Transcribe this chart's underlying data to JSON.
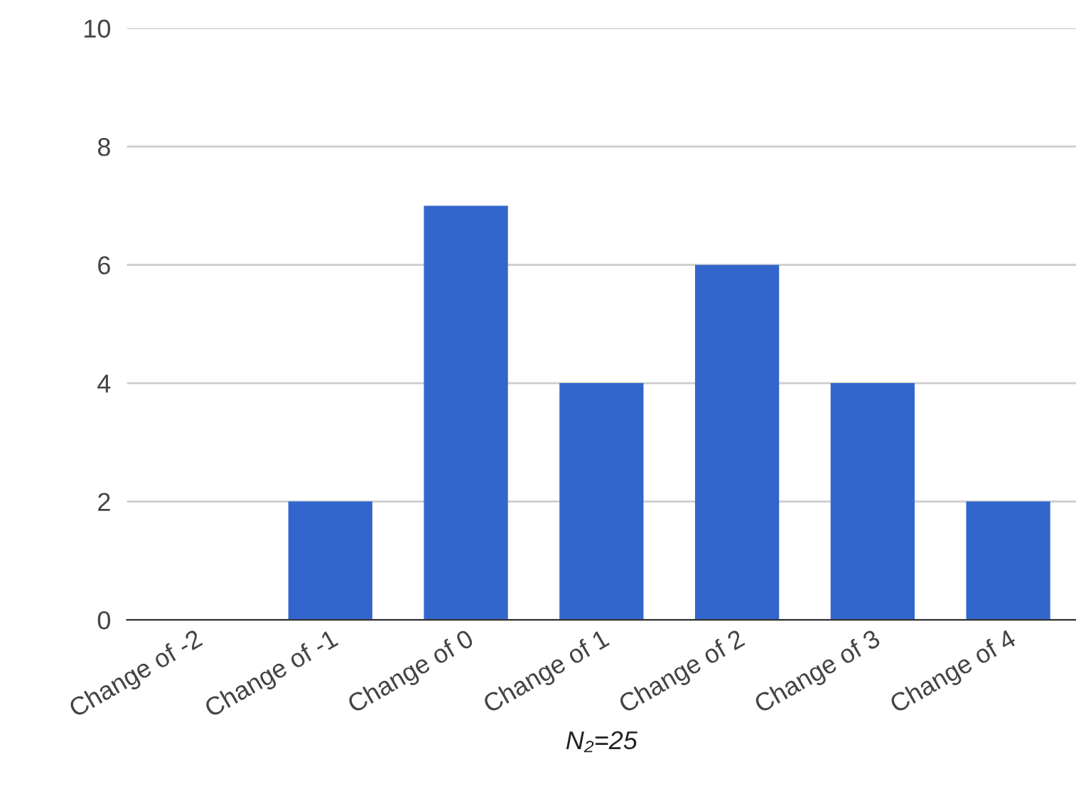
{
  "chart_data": {
    "type": "bar",
    "categories": [
      "Change of -2",
      "Change of -1",
      "Change of 0",
      "Change of 1",
      "Change of 2",
      "Change of 3",
      "Change of 4"
    ],
    "values": [
      0,
      2,
      7,
      4,
      6,
      4,
      2
    ],
    "color": "#3366cc",
    "xlabel": "N₂=25",
    "ylim": [
      0,
      10
    ],
    "yticks": [
      0,
      2,
      4,
      6,
      8,
      10
    ],
    "grid": "y",
    "legend": false
  }
}
